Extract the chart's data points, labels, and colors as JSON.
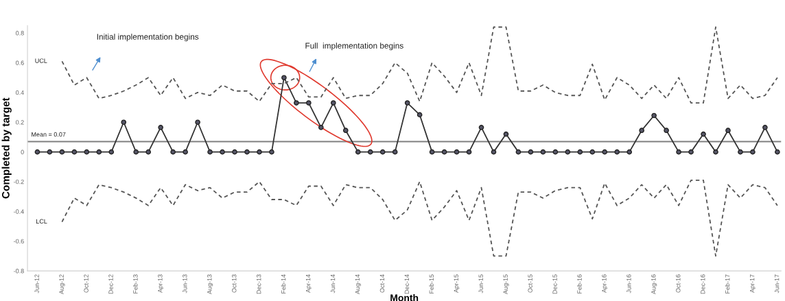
{
  "chart_data": {
    "type": "line",
    "xlabel": "Month",
    "ylabel": "Completed by target",
    "categories": [
      "Jun-12",
      null,
      "Aug-12",
      null,
      "Oct-12",
      null,
      "Dec-12",
      null,
      "Feb-13",
      null,
      "Apr-13",
      null,
      "Jun-13",
      null,
      "Aug-13",
      null,
      "Oct-13",
      null,
      "Dec-13",
      null,
      "Feb-14",
      null,
      "Apr-14",
      null,
      "Jun-14",
      null,
      "Aug-14",
      null,
      "Oct-14",
      null,
      "Dec-14",
      null,
      "Feb-15",
      null,
      "Apr-15",
      null,
      "Jun-15",
      null,
      "Aug-15",
      null,
      "Oct-15",
      null,
      "Dec-15",
      null,
      "Feb-16",
      null,
      "Apr-16",
      null,
      "Jun-16",
      null,
      "Aug-16",
      null,
      "Oct-16",
      null,
      "Dec-16",
      null,
      "Feb-17",
      null,
      "Apr-17",
      null,
      "Jun-17"
    ],
    "series": [
      {
        "color": "#333333",
        "marker": "circle",
        "line_style": "solid",
        "values": [
          0,
          0,
          0,
          0,
          0,
          0,
          0,
          0.2,
          0,
          0,
          0.165,
          0,
          0,
          0.2,
          0,
          0,
          0,
          0,
          0,
          0,
          0.5,
          0.33,
          0.33,
          0.165,
          0.33,
          0.145,
          0,
          0,
          0,
          0,
          0.33,
          0.25,
          0,
          0,
          0,
          0,
          0.165,
          0,
          0.12,
          0,
          0,
          0,
          0,
          0,
          0,
          0,
          0,
          0,
          0,
          0.145,
          0.245,
          0.145,
          0,
          0,
          0.12,
          0,
          0.145,
          0,
          0,
          0.165,
          0
        ]
      },
      {
        "name": "UCL",
        "color": "#555555",
        "marker": "none",
        "line_style": "dashed",
        "values": [
          null,
          null,
          0.61,
          0.45,
          0.5,
          0.36,
          0.38,
          0.41,
          0.45,
          0.5,
          0.38,
          0.5,
          0.36,
          0.4,
          0.38,
          0.45,
          0.41,
          0.41,
          0.34,
          0.46,
          0.46,
          0.5,
          0.37,
          0.37,
          0.5,
          0.36,
          0.38,
          0.38,
          0.46,
          0.6,
          0.53,
          0.34,
          0.6,
          0.51,
          0.4,
          0.6,
          0.38,
          0.84,
          0.84,
          0.41,
          0.41,
          0.45,
          0.4,
          0.38,
          0.38,
          0.59,
          0.35,
          0.5,
          0.45,
          0.36,
          0.45,
          0.36,
          0.5,
          0.33,
          0.33,
          0.84,
          0.36,
          0.45,
          0.36,
          0.38,
          0.5
        ]
      },
      {
        "name": "LCL",
        "color": "#555555",
        "marker": "none",
        "line_style": "dashed",
        "values": [
          null,
          null,
          -0.47,
          -0.31,
          -0.36,
          -0.22,
          -0.24,
          -0.27,
          -0.31,
          -0.36,
          -0.24,
          -0.36,
          -0.22,
          -0.26,
          -0.24,
          -0.31,
          -0.27,
          -0.27,
          -0.2,
          -0.32,
          -0.32,
          -0.36,
          -0.23,
          -0.23,
          -0.36,
          -0.22,
          -0.24,
          -0.24,
          -0.32,
          -0.46,
          -0.39,
          -0.2,
          -0.46,
          -0.37,
          -0.26,
          -0.46,
          -0.24,
          -0.7,
          -0.7,
          -0.27,
          -0.27,
          -0.31,
          -0.26,
          -0.24,
          -0.24,
          -0.45,
          -0.21,
          -0.36,
          -0.31,
          -0.22,
          -0.31,
          -0.22,
          -0.36,
          -0.19,
          -0.19,
          -0.7,
          -0.22,
          -0.31,
          -0.22,
          -0.24,
          -0.36
        ]
      }
    ],
    "ylim": [
      -0.8,
      0.85
    ],
    "yticks": [
      -0.8,
      -0.6,
      -0.4,
      -0.2,
      0,
      0.2,
      0.4,
      0.6,
      0.8
    ],
    "ref_lines": [
      {
        "axis": "y",
        "value": 0.07,
        "label": "Mean = 0.07",
        "color": "#808080",
        "line_style": "solid"
      }
    ],
    "annotations": [
      "Initial implementation begins",
      "Full  implementation begins"
    ],
    "grid": false,
    "legend": false
  }
}
